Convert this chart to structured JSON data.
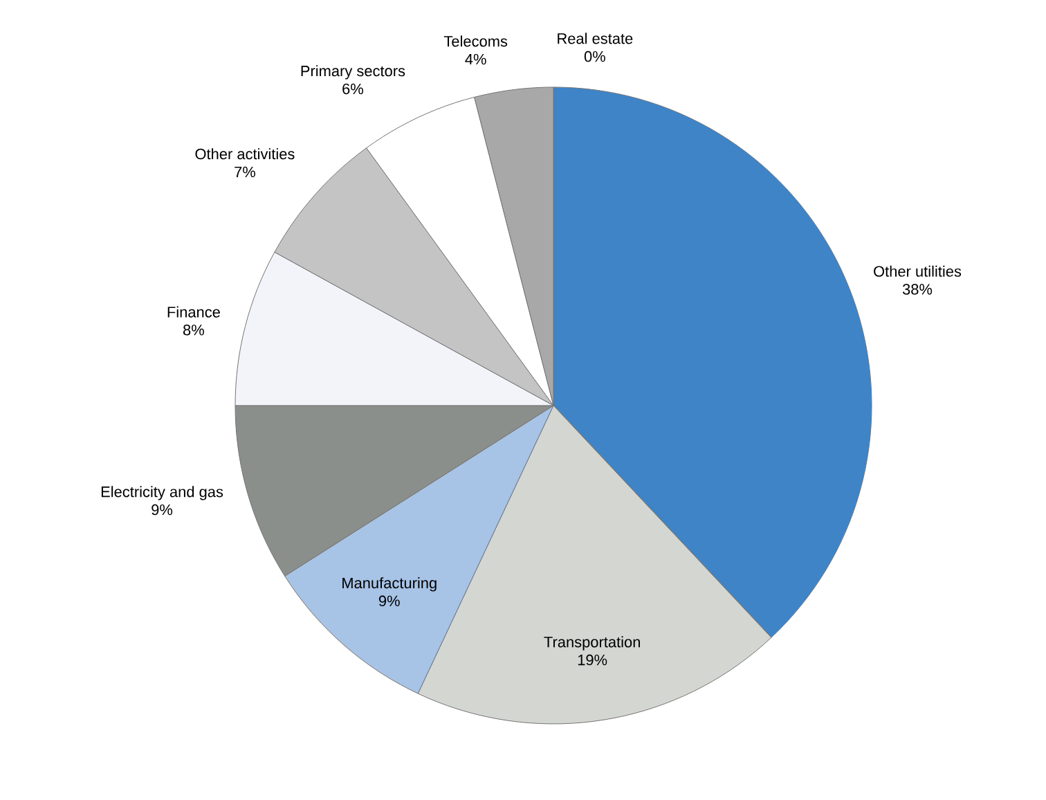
{
  "chart_data": {
    "type": "pie",
    "categories": [
      "Other utilities",
      "Transportation",
      "Manufacturing",
      "Electricity and gas",
      "Finance",
      "Other activities",
      "Primary sectors",
      "Telecoms",
      "Real estate"
    ],
    "values": [
      38,
      19,
      9,
      9,
      8,
      7,
      6,
      4,
      0
    ],
    "value_labels": [
      "38%",
      "19%",
      "9%",
      "9%",
      "8%",
      "7%",
      "6%",
      "4%",
      "0%"
    ],
    "colors": [
      "#3f84c6",
      "#d4d6d2",
      "#a7c3e6",
      "#8a8f8c",
      "#f2f4fa",
      "#c4c4c4",
      "#ffffff",
      "#a8a8a8",
      "#e0e0e0"
    ]
  }
}
